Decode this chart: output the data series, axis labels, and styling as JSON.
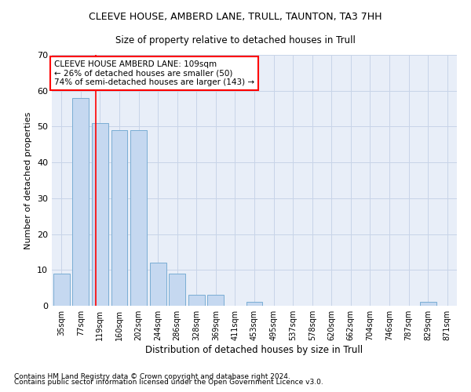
{
  "title": "CLEEVE HOUSE, AMBERD LANE, TRULL, TAUNTON, TA3 7HH",
  "subtitle": "Size of property relative to detached houses in Trull",
  "xlabel": "Distribution of detached houses by size in Trull",
  "ylabel": "Number of detached properties",
  "bar_color": "#c5d8f0",
  "bar_edge_color": "#7aadd4",
  "grid_color": "#c8d4e8",
  "bg_color": "#e8eef8",
  "categories": [
    "35sqm",
    "77sqm",
    "119sqm",
    "160sqm",
    "202sqm",
    "244sqm",
    "286sqm",
    "328sqm",
    "369sqm",
    "411sqm",
    "453sqm",
    "495sqm",
    "537sqm",
    "578sqm",
    "620sqm",
    "662sqm",
    "704sqm",
    "746sqm",
    "787sqm",
    "829sqm",
    "871sqm"
  ],
  "values": [
    9,
    58,
    51,
    49,
    49,
    12,
    9,
    3,
    3,
    0,
    1,
    0,
    0,
    0,
    0,
    0,
    0,
    0,
    0,
    1,
    0
  ],
  "ylim": [
    0,
    70
  ],
  "yticks": [
    0,
    10,
    20,
    30,
    40,
    50,
    60,
    70
  ],
  "annotation_line1": "CLEEVE HOUSE AMBERD LANE: 109sqm",
  "annotation_line2": "← 26% of detached houses are smaller (50)",
  "annotation_line3": "74% of semi-detached houses are larger (143) →",
  "footnote1": "Contains HM Land Registry data © Crown copyright and database right 2024.",
  "footnote2": "Contains public sector information licensed under the Open Government Licence v3.0.",
  "property_sqm": 109
}
